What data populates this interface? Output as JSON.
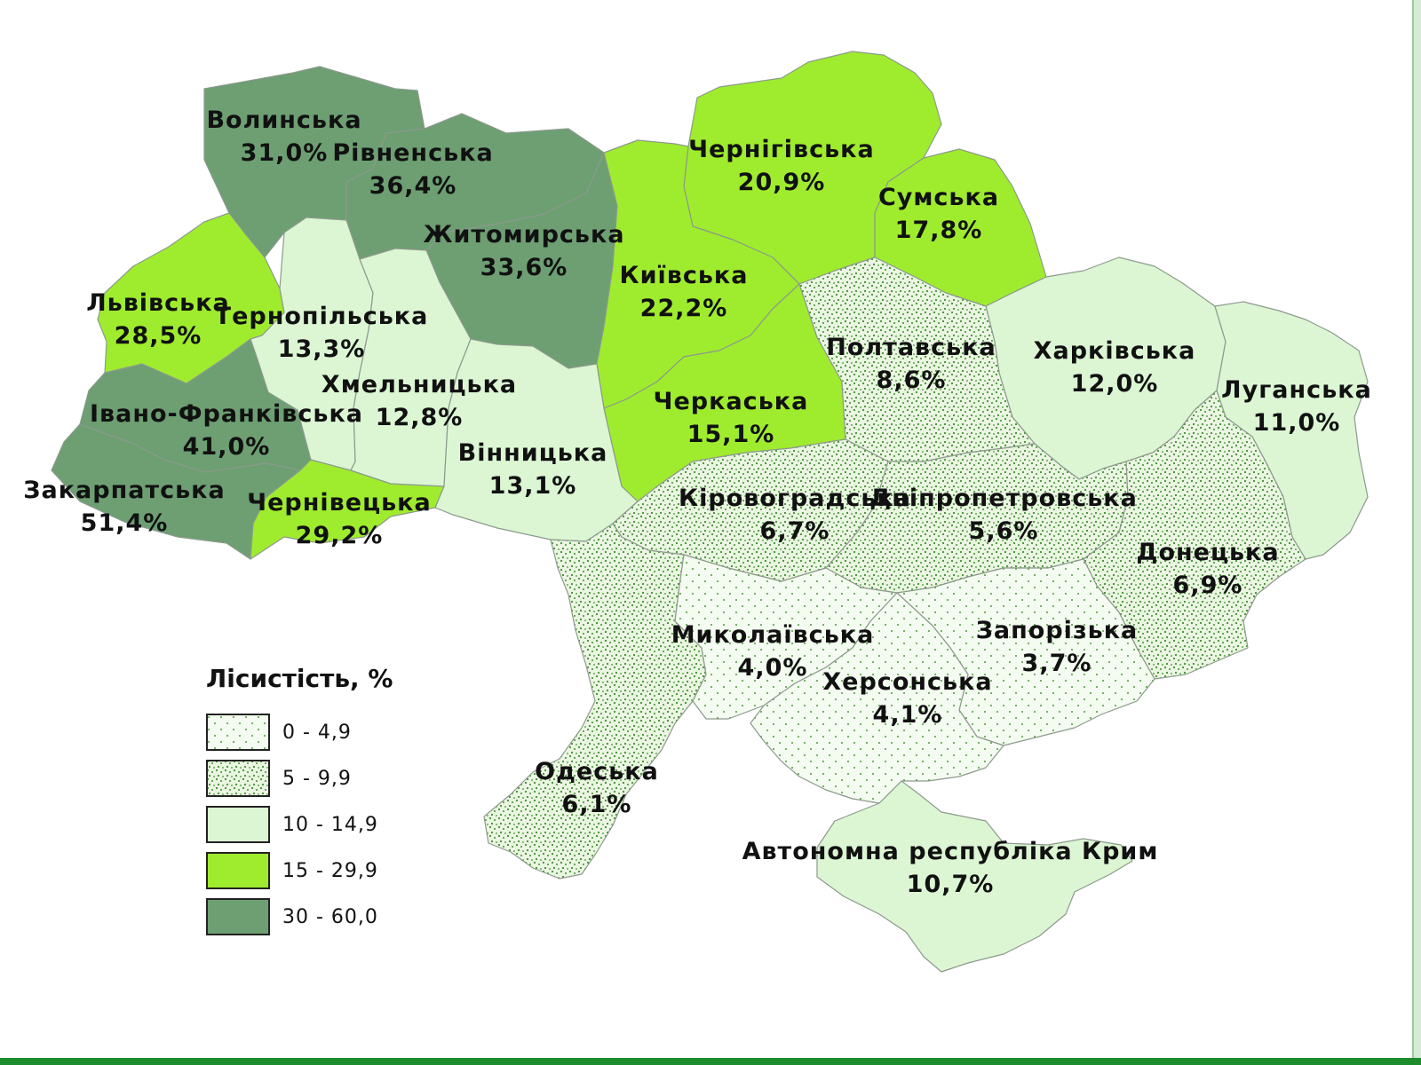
{
  "legend": {
    "title": "Лісистість, %",
    "items": [
      {
        "range": "0 - 4,9",
        "color": "pattern-sparse"
      },
      {
        "range": "5 - 9,9",
        "color": "pattern-dense"
      },
      {
        "range": "10 - 14,9",
        "color": "#dcf6d4"
      },
      {
        "range": "15 - 29,9",
        "color": "#9fec2e"
      },
      {
        "range": "30 - 60,0",
        "color": "#6d9f73"
      }
    ]
  },
  "regions": [
    {
      "id": "volynska",
      "name": "Волинська",
      "value": "31,0%",
      "class": 5
    },
    {
      "id": "rivnenska",
      "name": "Рівненська",
      "value": "36,4%",
      "class": 5
    },
    {
      "id": "zhytomyrska",
      "name": "Житомирська",
      "value": "33,6%",
      "class": 5
    },
    {
      "id": "chernihivska",
      "name": "Чернігівська",
      "value": "20,9%",
      "class": 4
    },
    {
      "id": "sumska",
      "name": "Сумська",
      "value": "17,8%",
      "class": 4
    },
    {
      "id": "kyivska",
      "name": "Київська",
      "value": "22,2%",
      "class": 4
    },
    {
      "id": "lvivska",
      "name": "Львівська",
      "value": "28,5%",
      "class": 4
    },
    {
      "id": "ternopilska",
      "name": "Тернопільська",
      "value": "13,3%",
      "class": 3
    },
    {
      "id": "khmelnytska",
      "name": "Хмельницька",
      "value": "12,8%",
      "class": 3
    },
    {
      "id": "ivano-frankivska",
      "name": "Івано-Франківська",
      "value": "41,0%",
      "class": 5
    },
    {
      "id": "zakarpatska",
      "name": "Закарпатська",
      "value": "51,4%",
      "class": 5
    },
    {
      "id": "chernivetska",
      "name": "Чернівецька",
      "value": "29,2%",
      "class": 4
    },
    {
      "id": "vinnytska",
      "name": "Вінницька",
      "value": "13,1%",
      "class": 3
    },
    {
      "id": "cherkaska",
      "name": "Черкаська",
      "value": "15,1%",
      "class": 4
    },
    {
      "id": "poltavska",
      "name": "Полтавська",
      "value": "8,6%",
      "class": 2
    },
    {
      "id": "kharkivska",
      "name": "Харківська",
      "value": "12,0%",
      "class": 3
    },
    {
      "id": "luhanska",
      "name": "Луганська",
      "value": "11,0%",
      "class": 3
    },
    {
      "id": "kirovohradska",
      "name": "Кіровоградська",
      "value": "6,7%",
      "class": 2
    },
    {
      "id": "dnipropetrovska",
      "name": "Дніпропетровська",
      "value": "5,6%",
      "class": 2
    },
    {
      "id": "donetska",
      "name": "Донецька",
      "value": "6,9%",
      "class": 2
    },
    {
      "id": "mykolaivska",
      "name": "Миколаївська",
      "value": "4,0%",
      "class": 1
    },
    {
      "id": "zaporizka",
      "name": "Запорізька",
      "value": "3,7%",
      "class": 1
    },
    {
      "id": "khersonska",
      "name": "Херсонська",
      "value": "4,1%",
      "class": 1
    },
    {
      "id": "odeska",
      "name": "Одеська",
      "value": "6,1%",
      "class": 2
    },
    {
      "id": "krym",
      "name": "Автономна республіка Крим",
      "value": "10,7%",
      "class": 3
    }
  ]
}
